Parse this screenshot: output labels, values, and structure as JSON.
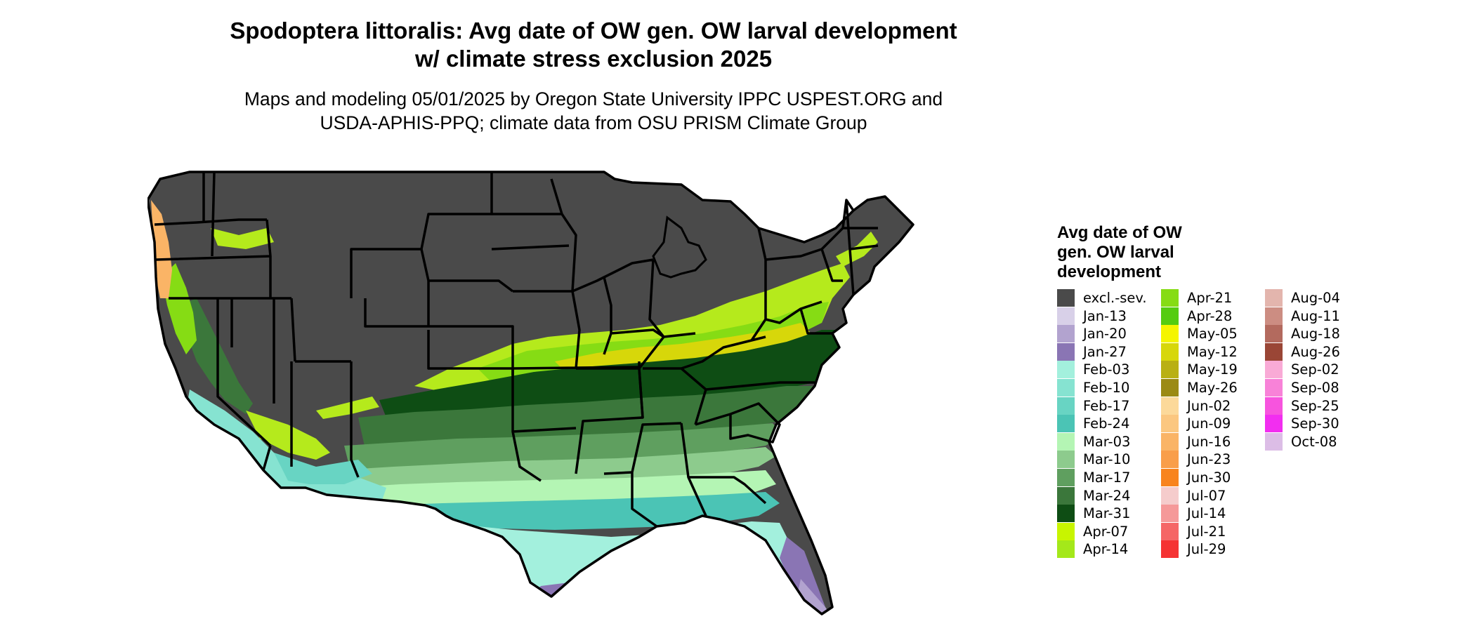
{
  "title_line1": "Spodoptera littoralis: Avg date of OW gen. OW larval development",
  "title_line2": "w/ climate stress exclusion 2025",
  "subtitle_line1": "Maps and modeling 05/01/2025 by Oregon State University IPPC USPEST.ORG and",
  "subtitle_line2": "USDA-APHIS-PPQ; climate data from OSU PRISM Climate Group",
  "legend": {
    "title_line1": "Avg date of OW",
    "title_line2": "gen. OW larval",
    "title_line3": "development",
    "columns": [
      [
        {
          "label": "excl.-sev.",
          "color": "#4a4a4a"
        },
        {
          "label": "Jan-13",
          "color": "#d8d0e8"
        },
        {
          "label": "Jan-20",
          "color": "#b2a3cf"
        },
        {
          "label": "Jan-27",
          "color": "#8a75b4"
        },
        {
          "label": "Feb-03",
          "color": "#a3f0dd"
        },
        {
          "label": "Feb-10",
          "color": "#86e3d1"
        },
        {
          "label": "Feb-17",
          "color": "#68d4c3"
        },
        {
          "label": "Feb-24",
          "color": "#4bc4b5"
        },
        {
          "label": "Mar-03",
          "color": "#b4f5b4"
        },
        {
          "label": "Mar-10",
          "color": "#8dcb8d"
        },
        {
          "label": "Mar-17",
          "color": "#5f9f5f"
        },
        {
          "label": "Mar-24",
          "color": "#3b773b"
        },
        {
          "label": "Mar-31",
          "color": "#0e4d14"
        },
        {
          "label": "Apr-07",
          "color": "#c8f500"
        },
        {
          "label": "Apr-14",
          "color": "#a4e81a"
        }
      ],
      [
        {
          "label": "Apr-21",
          "color": "#86dc14"
        },
        {
          "label": "Apr-28",
          "color": "#55cc10"
        },
        {
          "label": "May-05",
          "color": "#f5f500"
        },
        {
          "label": "May-12",
          "color": "#d7d70a"
        },
        {
          "label": "May-19",
          "color": "#b9b014"
        },
        {
          "label": "May-26",
          "color": "#9b8a14"
        },
        {
          "label": "Jun-02",
          "color": "#fcd99a"
        },
        {
          "label": "Jun-09",
          "color": "#fbc780"
        },
        {
          "label": "Jun-16",
          "color": "#fab466"
        },
        {
          "label": "Jun-23",
          "color": "#f99e4a"
        },
        {
          "label": "Jun-30",
          "color": "#f8841e"
        },
        {
          "label": "Jul-07",
          "color": "#f5cccc"
        },
        {
          "label": "Jul-14",
          "color": "#f59999"
        },
        {
          "label": "Jul-21",
          "color": "#f56666"
        },
        {
          "label": "Jul-29",
          "color": "#f53333"
        }
      ],
      [
        {
          "label": "Aug-04",
          "color": "#e3b5ad"
        },
        {
          "label": "Aug-11",
          "color": "#cc8d82"
        },
        {
          "label": "Aug-18",
          "color": "#b36a5e"
        },
        {
          "label": "Aug-26",
          "color": "#9a4636"
        },
        {
          "label": "Sep-02",
          "color": "#f9aad6"
        },
        {
          "label": "Sep-08",
          "color": "#f882d8"
        },
        {
          "label": "Sep-25",
          "color": "#f754de"
        },
        {
          "label": "Sep-30",
          "color": "#f22ef0"
        },
        {
          "label": "Oct-08",
          "color": "#dcbde6"
        }
      ]
    ]
  }
}
